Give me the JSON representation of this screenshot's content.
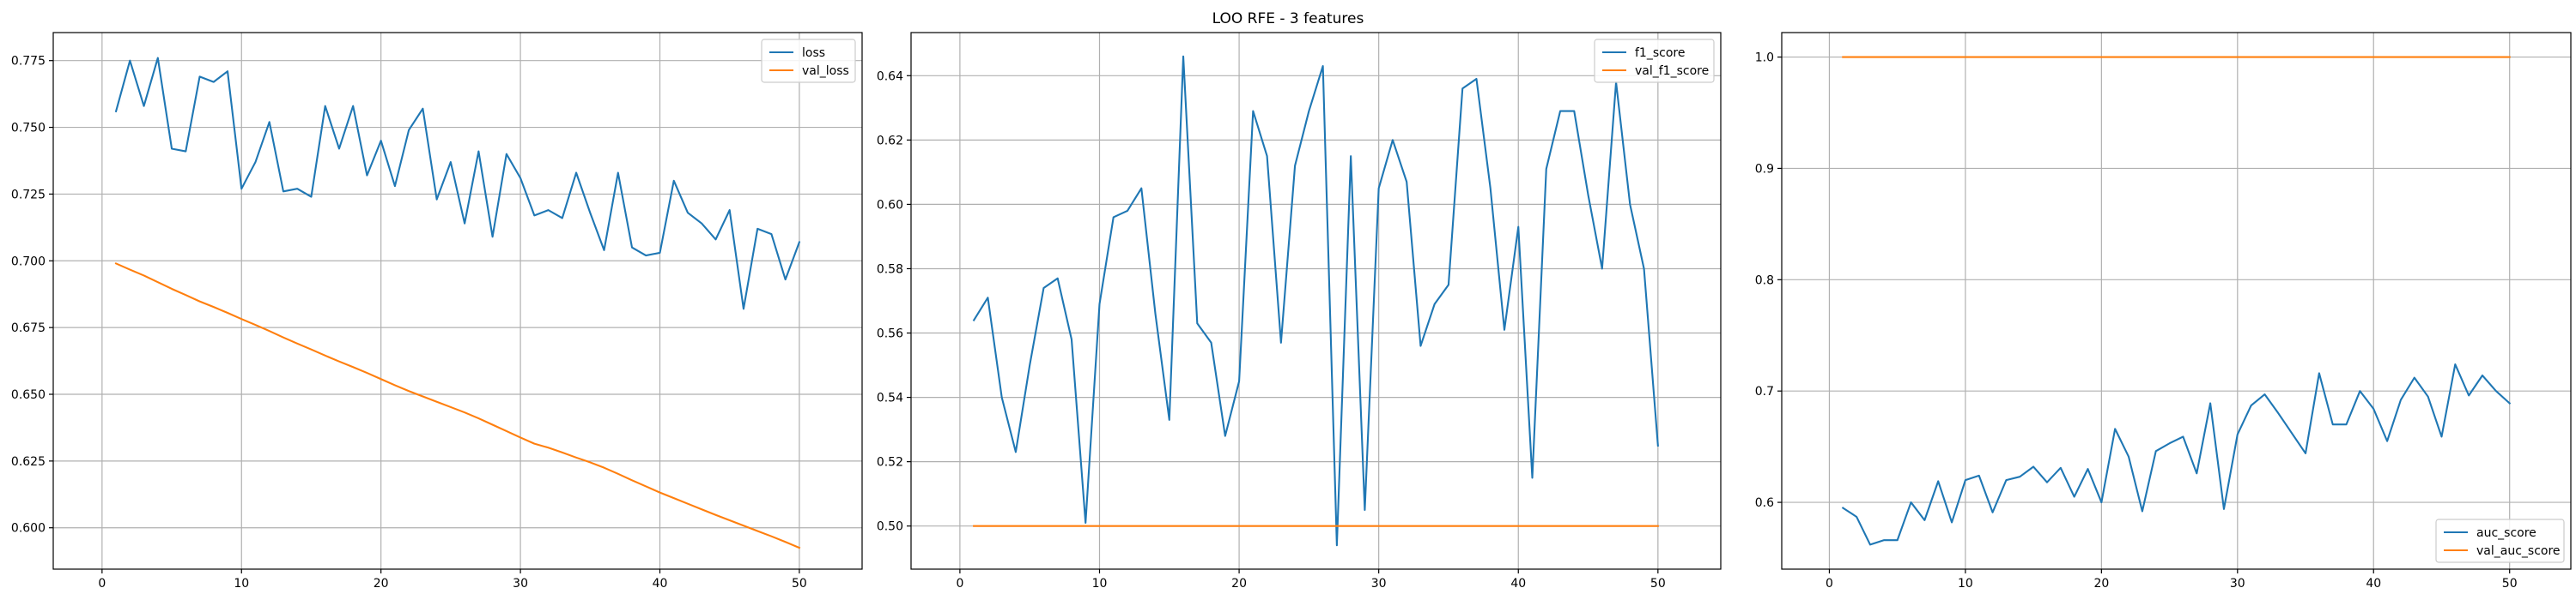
{
  "title": "LOO RFE - 3 features",
  "colors": {
    "series1": "#1f77b4",
    "series2": "#ff7f0e",
    "grid": "#b0b0b0"
  },
  "chart_data": [
    {
      "type": "line",
      "xlim": [
        -3.5,
        54.5
      ],
      "ylim": [
        0.5845,
        0.7855
      ],
      "xticks": [
        0,
        10,
        20,
        30,
        40,
        50
      ],
      "xtick_labels": [
        "0",
        "10",
        "20",
        "30",
        "40",
        "50"
      ],
      "yticks": [
        0.6,
        0.625,
        0.65,
        0.675,
        0.7,
        0.725,
        0.75,
        0.775
      ],
      "ytick_labels": [
        "0.600",
        "0.625",
        "0.650",
        "0.675",
        "0.700",
        "0.725",
        "0.750",
        "0.775"
      ],
      "grid": true,
      "legend_loc": "upper right",
      "x": [
        1,
        2,
        3,
        4,
        5,
        6,
        7,
        8,
        9,
        10,
        11,
        12,
        13,
        14,
        15,
        16,
        17,
        18,
        19,
        20,
        21,
        22,
        23,
        24,
        25,
        26,
        27,
        28,
        29,
        30,
        31,
        32,
        33,
        34,
        35,
        36,
        37,
        38,
        39,
        40,
        41,
        42,
        43,
        44,
        45,
        46,
        47,
        48,
        49,
        50
      ],
      "series": [
        {
          "name": "loss",
          "color": "#1f77b4",
          "values": [
            0.756,
            0.775,
            0.758,
            0.776,
            0.742,
            0.741,
            0.769,
            0.767,
            0.771,
            0.727,
            0.737,
            0.752,
            0.726,
            0.727,
            0.724,
            0.758,
            0.742,
            0.758,
            0.732,
            0.745,
            0.728,
            0.749,
            0.757,
            0.723,
            0.737,
            0.714,
            0.741,
            0.709,
            0.74,
            0.731,
            0.717,
            0.719,
            0.716,
            0.733,
            0.718,
            0.704,
            0.733,
            0.705,
            0.702,
            0.703,
            0.73,
            0.718,
            0.714,
            0.708,
            0.719,
            0.682,
            0.712,
            0.71,
            0.693,
            0.707
          ]
        },
        {
          "name": "val_loss",
          "color": "#ff7f0e",
          "values": [
            0.699,
            0.6967,
            0.6945,
            0.692,
            0.6895,
            0.6872,
            0.6848,
            0.6827,
            0.6805,
            0.6782,
            0.676,
            0.6737,
            0.6713,
            0.669,
            0.6668,
            0.6645,
            0.6623,
            0.6602,
            0.658,
            0.6557,
            0.6534,
            0.6512,
            0.6492,
            0.6472,
            0.6452,
            0.6432,
            0.641,
            0.6386,
            0.6362,
            0.6338,
            0.6315,
            0.63,
            0.6282,
            0.6263,
            0.6245,
            0.6225,
            0.6202,
            0.6178,
            0.6155,
            0.6132,
            0.6111,
            0.609,
            0.6069,
            0.6048,
            0.6028,
            0.6008,
            0.5988,
            0.5968,
            0.5947,
            0.5925
          ]
        }
      ]
    },
    {
      "type": "line",
      "xlim": [
        -3.5,
        54.5
      ],
      "ylim": [
        0.4866,
        0.6534
      ],
      "xticks": [
        0,
        10,
        20,
        30,
        40,
        50
      ],
      "xtick_labels": [
        "0",
        "10",
        "20",
        "30",
        "40",
        "50"
      ],
      "yticks": [
        0.5,
        0.52,
        0.54,
        0.56,
        0.58,
        0.6,
        0.62,
        0.64
      ],
      "ytick_labels": [
        "0.50",
        "0.52",
        "0.54",
        "0.56",
        "0.58",
        "0.60",
        "0.62",
        "0.64"
      ],
      "grid": true,
      "legend_loc": "upper right",
      "x": [
        1,
        2,
        3,
        4,
        5,
        6,
        7,
        8,
        9,
        10,
        11,
        12,
        13,
        14,
        15,
        16,
        17,
        18,
        19,
        20,
        21,
        22,
        23,
        24,
        25,
        26,
        27,
        28,
        29,
        30,
        31,
        32,
        33,
        34,
        35,
        36,
        37,
        38,
        39,
        40,
        41,
        42,
        43,
        44,
        45,
        46,
        47,
        48,
        49,
        50
      ],
      "series": [
        {
          "name": "f1_score",
          "color": "#1f77b4",
          "values": [
            0.564,
            0.571,
            0.54,
            0.523,
            0.55,
            0.574,
            0.577,
            0.558,
            0.501,
            0.569,
            0.596,
            0.598,
            0.605,
            0.566,
            0.533,
            0.646,
            0.563,
            0.557,
            0.528,
            0.545,
            0.629,
            0.615,
            0.557,
            0.612,
            0.629,
            0.643,
            0.494,
            0.615,
            0.505,
            0.605,
            0.62,
            0.607,
            0.556,
            0.569,
            0.575,
            0.636,
            0.639,
            0.605,
            0.561,
            0.593,
            0.515,
            0.611,
            0.629,
            0.629,
            0.603,
            0.58,
            0.638,
            0.6,
            0.58,
            0.525
          ]
        },
        {
          "name": "val_f1_score",
          "color": "#ff7f0e",
          "values": [
            0.5,
            0.5,
            0.5,
            0.5,
            0.5,
            0.5,
            0.5,
            0.5,
            0.5,
            0.5,
            0.5,
            0.5,
            0.5,
            0.5,
            0.5,
            0.5,
            0.5,
            0.5,
            0.5,
            0.5,
            0.5,
            0.5,
            0.5,
            0.5,
            0.5,
            0.5,
            0.5,
            0.5,
            0.5,
            0.5,
            0.5,
            0.5,
            0.5,
            0.5,
            0.5,
            0.5,
            0.5,
            0.5,
            0.5,
            0.5,
            0.5,
            0.5,
            0.5,
            0.5,
            0.5,
            0.5,
            0.5,
            0.5,
            0.5,
            0.5
          ]
        }
      ]
    },
    {
      "type": "line",
      "xlim": [
        -3.5,
        54.5
      ],
      "ylim": [
        0.54,
        1.022
      ],
      "xticks": [
        0,
        10,
        20,
        30,
        40,
        50
      ],
      "xtick_labels": [
        "0",
        "10",
        "20",
        "30",
        "40",
        "50"
      ],
      "yticks": [
        0.6,
        0.7,
        0.8,
        0.9,
        1.0
      ],
      "ytick_labels": [
        "0.6",
        "0.7",
        "0.8",
        "0.9",
        "1.0"
      ],
      "grid": true,
      "legend_loc": "lower right",
      "x": [
        1,
        2,
        3,
        4,
        5,
        6,
        7,
        8,
        9,
        10,
        11,
        12,
        13,
        14,
        15,
        16,
        17,
        18,
        19,
        20,
        21,
        22,
        23,
        24,
        25,
        26,
        27,
        28,
        29,
        30,
        31,
        32,
        33,
        34,
        35,
        36,
        37,
        38,
        39,
        40,
        41,
        42,
        43,
        44,
        45,
        46,
        47,
        48,
        49,
        50
      ],
      "series": [
        {
          "name": "auc_score",
          "color": "#1f77b4",
          "values": [
            0.595,
            0.587,
            0.562,
            0.566,
            0.566,
            0.6,
            0.584,
            0.619,
            0.582,
            0.62,
            0.624,
            0.591,
            0.62,
            0.623,
            0.632,
            0.618,
            0.631,
            0.605,
            0.63,
            0.6,
            0.666,
            0.641,
            0.592,
            0.646,
            0.653,
            0.659,
            0.626,
            0.689,
            0.594,
            0.661,
            0.687,
            0.697,
            0.68,
            0.662,
            0.644,
            0.716,
            0.67,
            0.67,
            0.7,
            0.684,
            0.655,
            0.692,
            0.712,
            0.695,
            0.659,
            0.724,
            0.696,
            0.714,
            0.7,
            0.689
          ]
        },
        {
          "name": "val_auc_score",
          "color": "#ff7f0e",
          "values": [
            1.0,
            1.0,
            1.0,
            1.0,
            1.0,
            1.0,
            1.0,
            1.0,
            1.0,
            1.0,
            1.0,
            1.0,
            1.0,
            1.0,
            1.0,
            1.0,
            1.0,
            1.0,
            1.0,
            1.0,
            1.0,
            1.0,
            1.0,
            1.0,
            1.0,
            1.0,
            1.0,
            1.0,
            1.0,
            1.0,
            1.0,
            1.0,
            1.0,
            1.0,
            1.0,
            1.0,
            1.0,
            1.0,
            1.0,
            1.0,
            1.0,
            1.0,
            1.0,
            1.0,
            1.0,
            1.0,
            1.0,
            1.0,
            1.0,
            1.0
          ]
        }
      ]
    }
  ]
}
